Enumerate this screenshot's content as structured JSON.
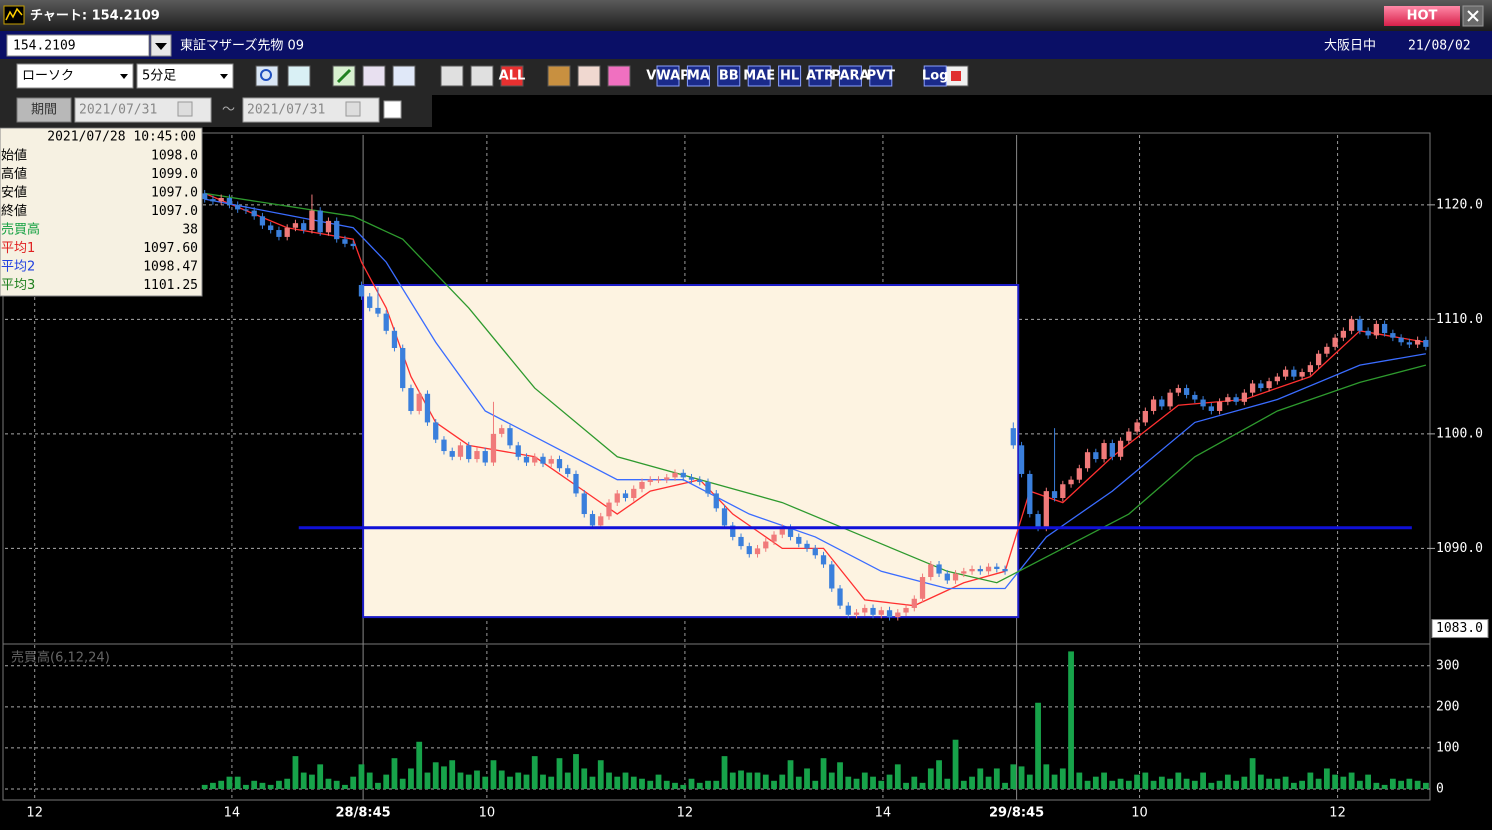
{
  "window": {
    "title": "チャート: 154.2109",
    "hot": "HOT"
  },
  "toolbar": {
    "code": "154.2109",
    "name": "東証マザーズ先物 09",
    "session": "大阪日中",
    "date": "21/08/02",
    "chart_kind": "ローソク",
    "interval": "5分足",
    "all": "ALL",
    "indicators": [
      "VWAP",
      "MA",
      "BB",
      "MAE",
      "HL",
      "ATR",
      "PARA",
      "PVT",
      "Log"
    ],
    "period": "期間",
    "from": "2021/07/31",
    "tilde": "～",
    "to": "2021/07/31"
  },
  "info": {
    "datetime": "2021/07/28  10:45:00",
    "rows": [
      {
        "label": "始値",
        "value": "1098.0",
        "color": "#000000"
      },
      {
        "label": "高値",
        "value": "1099.0",
        "color": "#000000"
      },
      {
        "label": "安値",
        "value": "1097.0",
        "color": "#000000"
      },
      {
        "label": "終値",
        "value": "1097.0",
        "color": "#000000"
      },
      {
        "label": "売買高",
        "value": "38",
        "color": "#12a040"
      },
      {
        "label": "平均1",
        "value": "1097.60",
        "color": "#e02020"
      },
      {
        "label": "平均2",
        "value": "1098.47",
        "color": "#2040e0"
      },
      {
        "label": "平均3",
        "value": "1101.25",
        "color": "#208020"
      }
    ]
  },
  "chart_data": {
    "type": "candlestick",
    "up_color": "#f07a7a",
    "down_color": "#3a7fdc",
    "xlim": [
      -24.2,
      148.5
    ],
    "xticks": [
      {
        "value": -20.6,
        "label": "12"
      },
      {
        "value": 3.3,
        "label": "14"
      },
      {
        "value": 34.2,
        "label": "10"
      },
      {
        "value": 58.2,
        "label": "12"
      },
      {
        "value": 82.2,
        "label": "14"
      },
      {
        "value": 113.3,
        "label": "10"
      },
      {
        "value": 137.3,
        "label": "12"
      }
    ],
    "session_xticks": [
      {
        "value": 19.2,
        "label": "28/8:45"
      },
      {
        "value": 98.4,
        "label": "29/8:45"
      }
    ],
    "ylim": [
      1082,
      1126.1
    ],
    "yticks": [
      {
        "value": 1120,
        "label": "1120.0"
      },
      {
        "value": 1110,
        "label": "1110.0"
      },
      {
        "value": 1100,
        "label": "1100.0"
      },
      {
        "value": 1090,
        "label": "1090.0"
      }
    ],
    "price_tag": {
      "value": 1083,
      "label": "1083.0"
    },
    "grid": true,
    "candles": [
      [
        1121.0,
        1121.3,
        1120.2,
        1120.5
      ],
      [
        1120.5,
        1120.8,
        1120.0,
        1120.3
      ],
      [
        1120.3,
        1120.9,
        1120.0,
        1120.6
      ],
      [
        1120.6,
        1120.9,
        1119.7,
        1120.0
      ],
      [
        1120.0,
        1120.3,
        1119.3,
        1119.6
      ],
      [
        1119.6,
        1119.9,
        1119.2,
        1119.5
      ],
      [
        1119.5,
        1119.8,
        1118.7,
        1119.0
      ],
      [
        1119.0,
        1119.3,
        1117.9,
        1118.2
      ],
      [
        1118.2,
        1118.5,
        1117.5,
        1117.8
      ],
      [
        1117.8,
        1118.1,
        1116.9,
        1117.2
      ],
      [
        1117.2,
        1118.3,
        1116.9,
        1118.0
      ],
      [
        1118.0,
        1118.7,
        1117.7,
        1118.4
      ],
      [
        1118.4,
        1118.7,
        1117.5,
        1117.8
      ],
      [
        1117.8,
        1120.9,
        1117.5,
        1119.5
      ],
      [
        1119.5,
        1119.8,
        1117.3,
        1117.6
      ],
      [
        1117.6,
        1118.9,
        1117.3,
        1118.6
      ],
      [
        1118.6,
        1118.9,
        1116.7,
        1117.0
      ],
      [
        1117.0,
        1117.3,
        1116.3,
        1116.6
      ],
      [
        1116.6,
        1116.9,
        1116.1,
        1116.4
      ],
      [
        1113.0,
        1113.3,
        1111.7,
        1112.0
      ],
      [
        1112.0,
        1112.3,
        1110.7,
        1111.0
      ],
      [
        1111.0,
        1112.8,
        1110.2,
        1110.5
      ],
      [
        1110.5,
        1110.8,
        1108.7,
        1109.0
      ],
      [
        1109.0,
        1109.3,
        1107.2,
        1107.5
      ],
      [
        1107.5,
        1107.8,
        1103.7,
        1104.0
      ],
      [
        1104.0,
        1104.3,
        1101.7,
        1102.0
      ],
      [
        1102.0,
        1103.8,
        1101.7,
        1103.5
      ],
      [
        1103.5,
        1103.8,
        1100.7,
        1101.0
      ],
      [
        1101.0,
        1101.3,
        1099.2,
        1099.5
      ],
      [
        1099.5,
        1099.8,
        1098.2,
        1098.5
      ],
      [
        1098.5,
        1098.8,
        1097.7,
        1098.0
      ],
      [
        1098.0,
        1099.3,
        1097.7,
        1099.0
      ],
      [
        1099.0,
        1099.3,
        1097.5,
        1097.8
      ],
      [
        1097.8,
        1098.8,
        1097.5,
        1098.5
      ],
      [
        1098.5,
        1098.8,
        1097.2,
        1097.5
      ],
      [
        1097.5,
        1102.8,
        1097.2,
        1100.0
      ],
      [
        1100.0,
        1100.8,
        1099.7,
        1100.5
      ],
      [
        1100.5,
        1100.8,
        1098.7,
        1099.0
      ],
      [
        1099.0,
        1099.3,
        1097.7,
        1098.0
      ],
      [
        1098.0,
        1098.3,
        1097.2,
        1097.5
      ],
      [
        1097.5,
        1098.3,
        1097.2,
        1098.0
      ],
      [
        1098.0,
        1098.3,
        1097.1,
        1097.4
      ],
      [
        1097.4,
        1098.1,
        1097.1,
        1097.8
      ],
      [
        1097.8,
        1098.1,
        1096.7,
        1097.0
      ],
      [
        1097.0,
        1097.3,
        1096.2,
        1096.5
      ],
      [
        1096.5,
        1096.8,
        1094.5,
        1094.8
      ],
      [
        1094.8,
        1095.1,
        1092.7,
        1093.0
      ],
      [
        1093.0,
        1093.3,
        1091.7,
        1092.0
      ],
      [
        1092.0,
        1093.1,
        1091.7,
        1092.8
      ],
      [
        1092.8,
        1094.3,
        1092.5,
        1094.0
      ],
      [
        1094.0,
        1095.1,
        1093.7,
        1094.8
      ],
      [
        1094.8,
        1095.1,
        1094.1,
        1094.4
      ],
      [
        1094.4,
        1095.5,
        1094.1,
        1095.2
      ],
      [
        1095.2,
        1096.1,
        1094.9,
        1095.8
      ],
      [
        1095.8,
        1096.3,
        1095.5,
        1096.0
      ],
      [
        1096.0,
        1096.3,
        1095.7,
        1096.0
      ],
      [
        1096.0,
        1096.5,
        1095.7,
        1096.2
      ],
      [
        1096.2,
        1096.9,
        1095.9,
        1096.6
      ],
      [
        1096.6,
        1096.9,
        1095.9,
        1096.2
      ],
      [
        1096.2,
        1096.5,
        1095.7,
        1096.0
      ],
      [
        1096.0,
        1096.3,
        1095.5,
        1095.8
      ],
      [
        1095.8,
        1096.1,
        1094.5,
        1094.8
      ],
      [
        1094.8,
        1095.1,
        1093.2,
        1093.5
      ],
      [
        1093.5,
        1093.8,
        1091.7,
        1092.0
      ],
      [
        1092.0,
        1092.3,
        1090.7,
        1091.0
      ],
      [
        1091.0,
        1091.3,
        1089.9,
        1090.2
      ],
      [
        1090.2,
        1090.5,
        1089.2,
        1089.5
      ],
      [
        1089.5,
        1090.3,
        1089.2,
        1090.0
      ],
      [
        1090.0,
        1090.9,
        1089.7,
        1090.6
      ],
      [
        1090.6,
        1091.5,
        1090.3,
        1091.2
      ],
      [
        1091.2,
        1092.1,
        1090.9,
        1091.8
      ],
      [
        1091.8,
        1092.1,
        1090.7,
        1091.0
      ],
      [
        1091.0,
        1091.3,
        1090.1,
        1090.4
      ],
      [
        1090.4,
        1090.7,
        1089.7,
        1090.0
      ],
      [
        1090.0,
        1090.3,
        1089.1,
        1089.4
      ],
      [
        1089.4,
        1089.7,
        1088.3,
        1088.6
      ],
      [
        1088.6,
        1088.9,
        1086.2,
        1086.5
      ],
      [
        1086.5,
        1086.8,
        1084.7,
        1085.0
      ],
      [
        1085.0,
        1085.3,
        1083.9,
        1084.2
      ],
      [
        1084.2,
        1084.7,
        1083.9,
        1084.4
      ],
      [
        1084.4,
        1085.1,
        1084.1,
        1084.8
      ],
      [
        1084.8,
        1085.1,
        1083.9,
        1084.2
      ],
      [
        1084.2,
        1084.9,
        1083.9,
        1084.6
      ],
      [
        1084.6,
        1084.9,
        1083.7,
        1084.0
      ],
      [
        1084.0,
        1084.7,
        1083.7,
        1084.4
      ],
      [
        1084.4,
        1085.1,
        1084.1,
        1084.8
      ],
      [
        1084.8,
        1085.9,
        1084.5,
        1085.6
      ],
      [
        1085.6,
        1087.8,
        1085.3,
        1087.5
      ],
      [
        1087.5,
        1088.9,
        1087.2,
        1088.6
      ],
      [
        1088.6,
        1088.9,
        1087.5,
        1087.8
      ],
      [
        1087.8,
        1088.1,
        1086.9,
        1087.2
      ],
      [
        1087.2,
        1088.1,
        1086.9,
        1087.8
      ],
      [
        1087.8,
        1088.3,
        1087.5,
        1088.0
      ],
      [
        1088.0,
        1088.5,
        1087.7,
        1088.2
      ],
      [
        1088.2,
        1088.5,
        1087.7,
        1088.0
      ],
      [
        1088.0,
        1088.7,
        1087.7,
        1088.4
      ],
      [
        1088.4,
        1088.7,
        1087.9,
        1088.2
      ],
      [
        1088.2,
        1088.5,
        1087.7,
        1088.0
      ],
      [
        1100.5,
        1101.0,
        1098.7,
        1099.0
      ],
      [
        1099.0,
        1099.3,
        1096.2,
        1096.5
      ],
      [
        1096.5,
        1096.8,
        1092.7,
        1093.0
      ],
      [
        1093.0,
        1093.3,
        1091.5,
        1091.8
      ],
      [
        1091.8,
        1095.3,
        1091.5,
        1095.0
      ],
      [
        1095.0,
        1100.5,
        1094.1,
        1094.4
      ],
      [
        1094.4,
        1095.9,
        1094.1,
        1095.6
      ],
      [
        1095.6,
        1096.3,
        1095.3,
        1096.0
      ],
      [
        1096.0,
        1097.3,
        1095.7,
        1097.0
      ],
      [
        1097.0,
        1098.7,
        1096.7,
        1098.4
      ],
      [
        1098.4,
        1098.7,
        1097.5,
        1097.8
      ],
      [
        1097.8,
        1099.5,
        1097.5,
        1099.2
      ],
      [
        1099.2,
        1099.5,
        1097.7,
        1098.0
      ],
      [
        1098.0,
        1099.7,
        1097.7,
        1099.4
      ],
      [
        1099.4,
        1100.5,
        1099.1,
        1100.2
      ],
      [
        1100.2,
        1101.3,
        1099.9,
        1101.0
      ],
      [
        1101.0,
        1102.3,
        1100.7,
        1102.0
      ],
      [
        1102.0,
        1103.3,
        1101.7,
        1103.0
      ],
      [
        1103.0,
        1103.3,
        1102.1,
        1102.4
      ],
      [
        1102.4,
        1103.9,
        1102.1,
        1103.6
      ],
      [
        1103.6,
        1104.3,
        1103.3,
        1104.0
      ],
      [
        1104.0,
        1104.3,
        1103.1,
        1103.4
      ],
      [
        1103.4,
        1103.7,
        1102.7,
        1103.0
      ],
      [
        1103.0,
        1103.3,
        1102.1,
        1102.4
      ],
      [
        1102.4,
        1102.7,
        1101.7,
        1102.0
      ],
      [
        1102.0,
        1103.1,
        1101.7,
        1102.8
      ],
      [
        1102.8,
        1103.5,
        1102.5,
        1103.2
      ],
      [
        1103.2,
        1103.5,
        1102.5,
        1102.8
      ],
      [
        1102.8,
        1103.9,
        1102.5,
        1103.6
      ],
      [
        1103.6,
        1104.7,
        1103.3,
        1104.4
      ],
      [
        1104.4,
        1104.7,
        1103.7,
        1104.0
      ],
      [
        1104.0,
        1104.9,
        1103.7,
        1104.6
      ],
      [
        1104.6,
        1105.3,
        1104.3,
        1105.0
      ],
      [
        1105.0,
        1105.9,
        1104.7,
        1105.6
      ],
      [
        1105.6,
        1105.9,
        1104.7,
        1105.0
      ],
      [
        1105.0,
        1105.7,
        1104.7,
        1105.4
      ],
      [
        1105.4,
        1106.3,
        1105.1,
        1106.0
      ],
      [
        1106.0,
        1107.3,
        1105.7,
        1107.0
      ],
      [
        1107.0,
        1107.9,
        1106.7,
        1107.6
      ],
      [
        1107.6,
        1108.7,
        1107.3,
        1108.4
      ],
      [
        1108.4,
        1109.3,
        1108.1,
        1109.0
      ],
      [
        1109.0,
        1110.3,
        1108.7,
        1110.0
      ],
      [
        1110.0,
        1110.3,
        1108.7,
        1109.0
      ],
      [
        1109.0,
        1109.3,
        1108.3,
        1108.6
      ],
      [
        1108.6,
        1109.9,
        1108.3,
        1109.6
      ],
      [
        1109.6,
        1109.9,
        1108.5,
        1108.8
      ],
      [
        1108.8,
        1109.1,
        1108.1,
        1108.4
      ],
      [
        1108.4,
        1108.7,
        1107.7,
        1108.0
      ],
      [
        1108.0,
        1108.3,
        1107.5,
        1107.8
      ],
      [
        1107.8,
        1108.5,
        1107.5,
        1108.2
      ],
      [
        1108.2,
        1108.5,
        1107.3,
        1107.6
      ]
    ],
    "moving_averages": [
      {
        "color": "#ff3030",
        "x": [
          0,
          10,
          18,
          19,
          22,
          25,
          28,
          32,
          40,
          46,
          50,
          54,
          60,
          64,
          70,
          75,
          80,
          86,
          92,
          97,
          100,
          104,
          110,
          118,
          126,
          134,
          140,
          148
        ],
        "values": [
          1121,
          1118,
          1117,
          1115,
          1111,
          1105,
          1101,
          1099,
          1098,
          1095,
          1093,
          1095,
          1096,
          1093,
          1090,
          1090,
          1085.5,
          1085,
          1087,
          1088,
          1095,
          1094,
          1098,
          1102.5,
          1103,
          1105,
          1109,
          1108
        ]
      },
      {
        "color": "#3a6cff",
        "x": [
          0,
          18,
          22,
          28,
          34,
          42,
          50,
          58,
          66,
          74,
          82,
          90,
          97,
          102,
          110,
          120,
          130,
          140,
          148
        ],
        "values": [
          1120.5,
          1118,
          1115,
          1108,
          1102,
          1099,
          1096,
          1096,
          1093,
          1091,
          1088,
          1086.5,
          1086.5,
          1091,
          1095,
          1101,
          1103,
          1106,
          1107
        ]
      },
      {
        "color": "#2e9a2e",
        "x": [
          0,
          18,
          24,
          32,
          40,
          50,
          60,
          70,
          80,
          90,
          96,
          104,
          112,
          120,
          130,
          140,
          148
        ],
        "values": [
          1121,
          1119,
          1117,
          1111,
          1104,
          1098,
          1096,
          1094,
          1091,
          1088,
          1087,
          1090,
          1093,
          1098,
          1102,
          1104.5,
          1106
        ]
      }
    ],
    "box": {
      "x": [
        19.2,
        98.6
      ],
      "y": [
        1113.0,
        1084.0
      ],
      "color": "#1c1cc8",
      "fill": "#fdf3e1"
    },
    "hline": {
      "x": [
        11.4,
        146.3
      ],
      "y": 1091.8,
      "color": "#1010d8"
    },
    "volume": {
      "label": "売買高(6,12,24)",
      "color": "#17a34a",
      "ylim": [
        0,
        336
      ],
      "yticks": [
        300,
        200,
        100,
        0
      ],
      "values": [
        10,
        15,
        20,
        30,
        30,
        10,
        20,
        15,
        10,
        20,
        25,
        80,
        40,
        35,
        60,
        25,
        20,
        10,
        30,
        60,
        40,
        15,
        35,
        75,
        25,
        50,
        115,
        40,
        65,
        55,
        70,
        40,
        35,
        45,
        30,
        70,
        45,
        30,
        40,
        35,
        80,
        35,
        30,
        75,
        40,
        85,
        50,
        30,
        70,
        40,
        30,
        40,
        30,
        25,
        20,
        35,
        20,
        15,
        10,
        25,
        15,
        20,
        20,
        80,
        40,
        45,
        40,
        40,
        35,
        20,
        35,
        70,
        30,
        50,
        20,
        75,
        40,
        65,
        30,
        25,
        40,
        30,
        20,
        35,
        60,
        15,
        30,
        15,
        50,
        70,
        25,
        120,
        20,
        30,
        50,
        30,
        50,
        15,
        60,
        55,
        35,
        210,
        60,
        35,
        50,
        335,
        40,
        20,
        30,
        40,
        20,
        25,
        20,
        35,
        40,
        20,
        30,
        25,
        40,
        25,
        20,
        40,
        15,
        20,
        35,
        20,
        30,
        75,
        35,
        25,
        25,
        30,
        15,
        20,
        40,
        25,
        50,
        35,
        30,
        40,
        20,
        35,
        15,
        10,
        25,
        20,
        25,
        20,
        15
      ]
    }
  }
}
